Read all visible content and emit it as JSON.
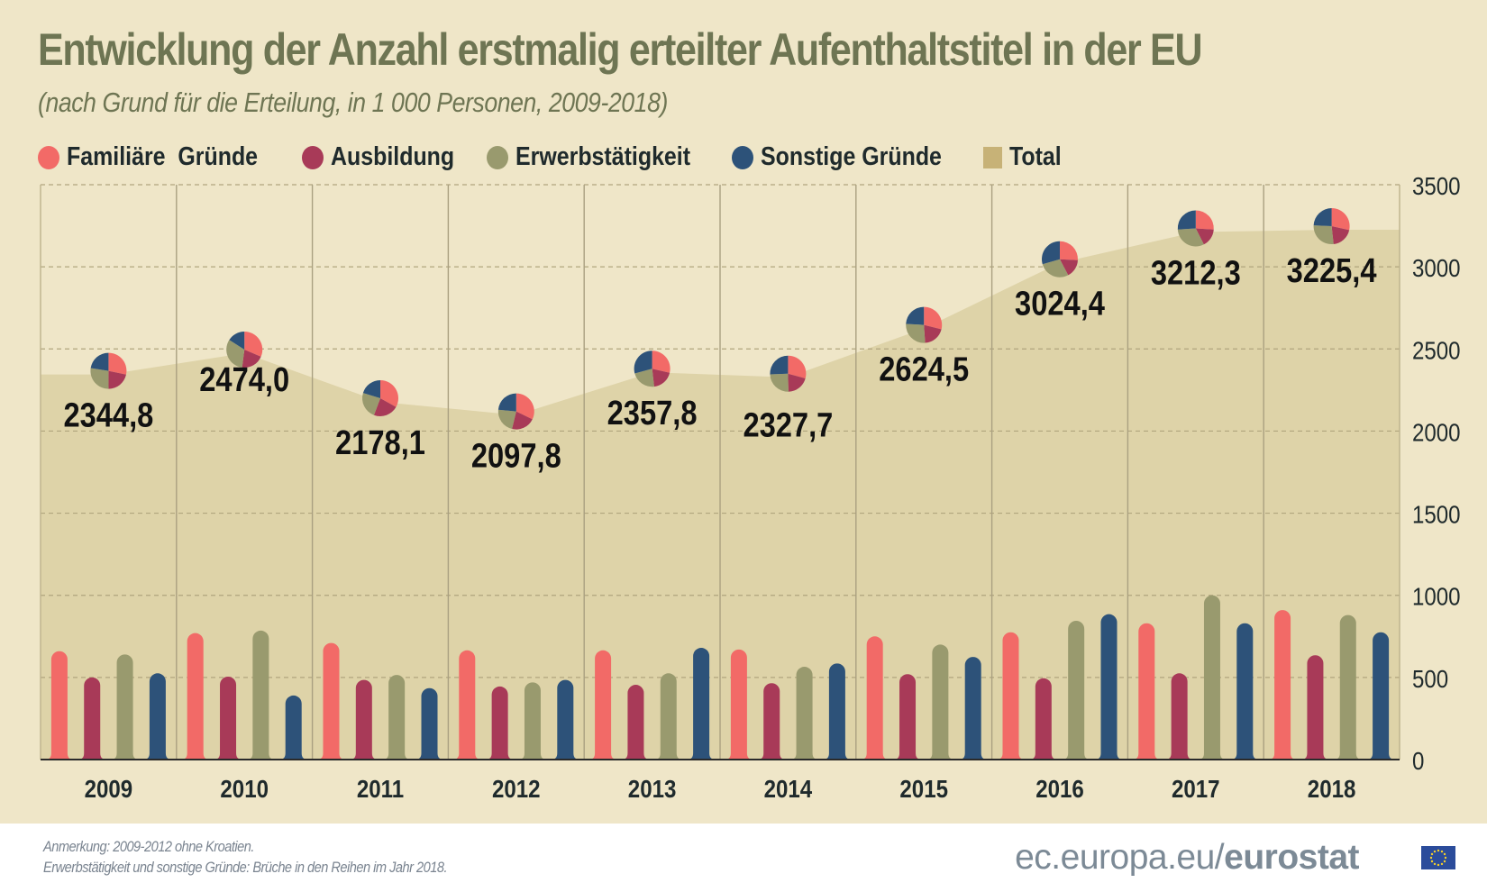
{
  "header": {
    "title": "Entwicklung der Anzahl erstmalig erteilter Aufenthaltstitel in der EU",
    "subtitle": "(nach Grund für die Erteilung, in 1 000 Personen, 2009-2018)"
  },
  "legend": [
    {
      "label": "Familiäre  Gründe",
      "color": "#f26a67",
      "shape": "circle"
    },
    {
      "label": "Ausbildung",
      "color": "#a83a58",
      "shape": "circle"
    },
    {
      "label": "Erwerbstätigkeit",
      "color": "#999a6e",
      "shape": "circle"
    },
    {
      "label": "Sonstige Gründe",
      "color": "#2d5279",
      "shape": "circle"
    },
    {
      "label": "Total",
      "color": "#c7b277",
      "shape": "square"
    }
  ],
  "footer": {
    "note1": "Anmerkung: 2009-2012 ohne Kroatien.",
    "note2": "Erwerbstätigkeit und sonstige Gründe: Brüche in den Reihen im Jahr 2018.",
    "url_plain": "ec.europa.eu/",
    "url_bold": "eurostat"
  },
  "chart_data": {
    "type": "bar",
    "title": "Entwicklung der Anzahl erstmalig erteilter Aufenthaltstitel in der EU",
    "subtitle": "(nach Grund für die Erteilung, in 1 000 Personen, 2009-2018)",
    "xlabel": "",
    "ylabel": "",
    "ylim": [
      0,
      3500
    ],
    "yticks": [
      0,
      500,
      1000,
      1500,
      2000,
      2500,
      3000,
      3500
    ],
    "y_axis_position": "right",
    "grid": true,
    "legend_position": "top",
    "categories": [
      "2009",
      "2010",
      "2011",
      "2012",
      "2013",
      "2014",
      "2015",
      "2016",
      "2017",
      "2018"
    ],
    "series": [
      {
        "name": "Familiäre  Gründe",
        "type": "bar",
        "color": "#f26a67",
        "values": [
          660,
          770,
          710,
          665,
          665,
          670,
          750,
          775,
          830,
          910
        ]
      },
      {
        "name": "Ausbildung",
        "type": "bar",
        "color": "#a83a58",
        "values": [
          500,
          505,
          485,
          445,
          455,
          465,
          520,
          495,
          525,
          635
        ]
      },
      {
        "name": "Erwerbstätigkeit",
        "type": "bar",
        "color": "#999a6e",
        "values": [
          640,
          785,
          515,
          470,
          525,
          565,
          700,
          845,
          1000,
          880
        ]
      },
      {
        "name": "Sonstige Gründe",
        "type": "bar",
        "color": "#2d5279",
        "values": [
          525,
          390,
          435,
          485,
          680,
          585,
          625,
          885,
          830,
          775
        ]
      },
      {
        "name": "Total",
        "type": "area",
        "color": "#c7b277",
        "values": [
          2344.8,
          2474.0,
          2178.1,
          2097.8,
          2357.8,
          2327.7,
          2624.5,
          3024.4,
          3212.3,
          3225.4
        ],
        "labels": [
          "2344,8",
          "2474,0",
          "2178,1",
          "2097,8",
          "2357,8",
          "2327,7",
          "2624,5",
          "3024,4",
          "3212,3",
          "3225,4"
        ]
      }
    ],
    "annotations": "Pie markers at each total point show the share of the four reasons"
  }
}
